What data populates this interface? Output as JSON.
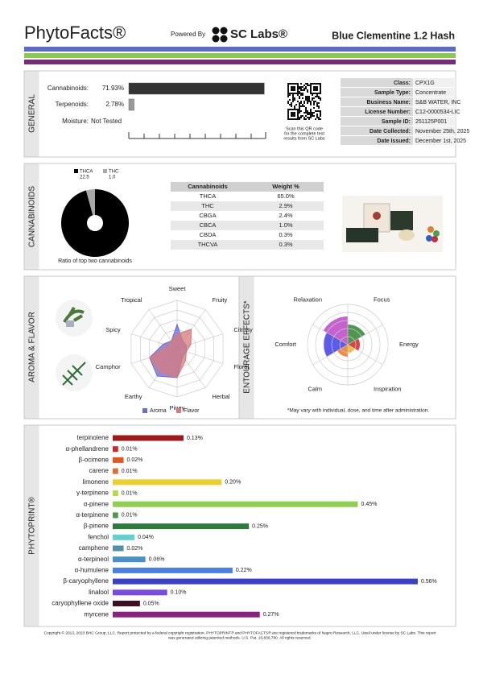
{
  "header": {
    "brand": "PhytoFacts®",
    "powered_by": "Powered By",
    "lab": "SC Labs®",
    "product": "Blue Clementine 1.2 Hash"
  },
  "general": {
    "label": "GENERAL",
    "moisture_label": "Moisture:",
    "moisture_value": "Not Tested",
    "qr_caption": [
      "Scan this QR code",
      "for the complete test",
      "results from SC Labs"
    ],
    "info": [
      [
        "Class:",
        "CPX1G"
      ],
      [
        "Sample Type:",
        "Concentrate"
      ],
      [
        "Business Name:",
        "S&B WATER, INC"
      ],
      [
        "License Number:",
        "C12-0000534-LIC"
      ],
      [
        "Sample ID:",
        "251125P001"
      ],
      [
        "Date Collected:",
        "November 25th, 2025"
      ],
      [
        "Date Issued:",
        "December 1st, 2025"
      ]
    ]
  },
  "cannabinoids": {
    "label": "CANNABINOIDS",
    "table": {
      "header": [
        "Cannabinoids",
        "Weight %"
      ],
      "rows": [
        [
          "THCA",
          "65.0%"
        ],
        [
          "THC",
          "2.9%"
        ],
        [
          "CBGA",
          "2.4%"
        ],
        [
          "CBCA",
          "1.0%"
        ],
        [
          "CBDA",
          "0.3%"
        ],
        [
          "THCVA",
          "0.3%"
        ]
      ]
    }
  },
  "aroma": {
    "label": "AROMA & FLAVOR",
    "footnote": "*May vary with individual, dose, and time after administration."
  },
  "phytoprint": {
    "label": "PHYTOPRINT®"
  },
  "footer": [
    "Copyright © 2013, 2023 BHC Group, LLC. Report protected by a federal copyright registration. PHYTOPRINT® and PHYTOFACTS® are registered trademarks of Napro Research, LLC. Used under license by SC Labs. This report",
    "was generated utilizing patented methods. U.S. Pat. 10,830,780. All rights reserved."
  ],
  "chart_data": [
    {
      "type": "hbar",
      "categories": [
        "Cannabinoids:",
        "Terpenoids:"
      ],
      "values": [
        71.93,
        2.78
      ],
      "value_labels": [
        "71.93%",
        "2.78%"
      ],
      "colors": [
        "#333333",
        "#999999"
      ],
      "xlim": [
        0,
        100
      ]
    },
    {
      "type": "pie",
      "title": "Ratio of top two cannabinoids",
      "categories": [
        "THCA",
        "THC"
      ],
      "values": [
        22.5,
        1.0
      ],
      "value_labels": [
        "22.5",
        "1.0"
      ],
      "colors": [
        "#000000",
        "#a8a8a8"
      ]
    },
    {
      "type": "radar",
      "categories": [
        "Sweet",
        "Fruity",
        "Citrusy",
        "Floral",
        "Herbal",
        "Piney",
        "Earthy",
        "Camphor",
        "Spicy",
        "Tropical"
      ],
      "series": [
        {
          "name": "Aroma",
          "color": "#6a6ad8",
          "values": [
            2.5,
            1,
            1,
            1,
            1,
            3,
            3.5,
            3,
            1.5,
            1
          ]
        },
        {
          "name": "Flavor",
          "color": "#d87a7a",
          "values": [
            1.5,
            2.5,
            1.5,
            1,
            1.5,
            3,
            3,
            3,
            1,
            1
          ]
        }
      ],
      "rlim": [
        0,
        5
      ],
      "rticks": [
        1,
        2,
        3,
        4,
        5
      ]
    },
    {
      "type": "polar",
      "title": "ENTOURAGE EFFECTS*",
      "categories": [
        "Relaxation",
        "Focus",
        "Energy",
        "Inspiration",
        "Calm",
        "Comfort"
      ],
      "values": [
        3.5,
        2.5,
        1.5,
        1,
        1.5,
        3
      ],
      "colors": [
        "#c050c8",
        "#3c8c3c",
        "#d83030",
        "#e8b830",
        "#f08030",
        "#4a4ae8"
      ],
      "rlim": [
        0,
        5
      ],
      "rticks": [
        1,
        2,
        3,
        4,
        5
      ]
    },
    {
      "type": "hbar-list",
      "categories": [
        "terpinolene",
        "α-phellandrene",
        "β-ocimene",
        "carene",
        "limonene",
        "γ-terpinene",
        "α-pinene",
        "α-terpinene",
        "β-pinene",
        "fenchol",
        "camphene",
        "α-terpineol",
        "α-humulene",
        "β-caryophyllene",
        "linalool",
        "caryophyllene oxide",
        "myrcene"
      ],
      "values": [
        0.13,
        0.01,
        0.02,
        0.01,
        0.2,
        0.01,
        0.45,
        0.01,
        0.25,
        0.04,
        0.02,
        0.06,
        0.22,
        0.56,
        0.1,
        0.05,
        0.27
      ],
      "value_labels": [
        "0.13%",
        "0.01%",
        "0.02%",
        "0.01%",
        "0.20%",
        "0.01%",
        "0.45%",
        "0.01%",
        "0.25%",
        "0.04%",
        "0.02%",
        "0.06%",
        "0.22%",
        "0.56%",
        "0.10%",
        "0.05%",
        "0.27%"
      ],
      "colors": [
        "#a01818",
        "#d02828",
        "#e05a20",
        "#e07030",
        "#ecd030",
        "#b8d848",
        "#90d050",
        "#4a9a50",
        "#2e7a3a",
        "#60d0d0",
        "#5090a8",
        "#4a90c8",
        "#4a80e0",
        "#3a40c8",
        "#7a4ae0",
        "#401020",
        "#8a2080"
      ],
      "xlim": [
        0,
        0.6
      ]
    }
  ]
}
